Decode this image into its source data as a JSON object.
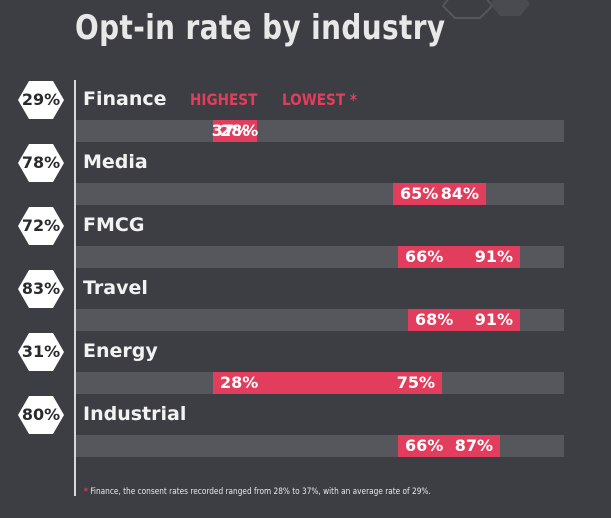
{
  "colors": {
    "background": "#3d3e43",
    "range": "#e23d5c",
    "track": "#56575d",
    "hex": "#ffffff"
  },
  "chart_data": {
    "type": "bar",
    "title": "Opt-in rate by industry",
    "legend": {
      "highest": "HIGHEST",
      "lowest": "LOWEST *"
    },
    "unit": "%",
    "xlim": [
      0,
      100
    ],
    "rows": [
      {
        "category": "Finance",
        "average": "29%",
        "low": 28,
        "high": 37,
        "low_label": "28%",
        "high_label": "37%"
      },
      {
        "category": "Media",
        "average": "78%",
        "low": 65,
        "high": 84,
        "low_label": "65%",
        "high_label": "84%"
      },
      {
        "category": "FMCG",
        "average": "72%",
        "low": 66,
        "high": 91,
        "low_label": "66%",
        "high_label": "91%"
      },
      {
        "category": "Travel",
        "average": "83%",
        "low": 68,
        "high": 91,
        "low_label": "68%",
        "high_label": "91%"
      },
      {
        "category": "Energy",
        "average": "31%",
        "low": 28,
        "high": 75,
        "low_label": "28%",
        "high_label": "75%"
      },
      {
        "category": "Industrial",
        "average": "80%",
        "low": 66,
        "high": 87,
        "low_label": "66%",
        "high_label": "87%"
      }
    ],
    "footnote": "Finance, the consent rates recorded ranged from 28% to 37%, with an average rate of 29%.",
    "footnote_marker": "*"
  }
}
